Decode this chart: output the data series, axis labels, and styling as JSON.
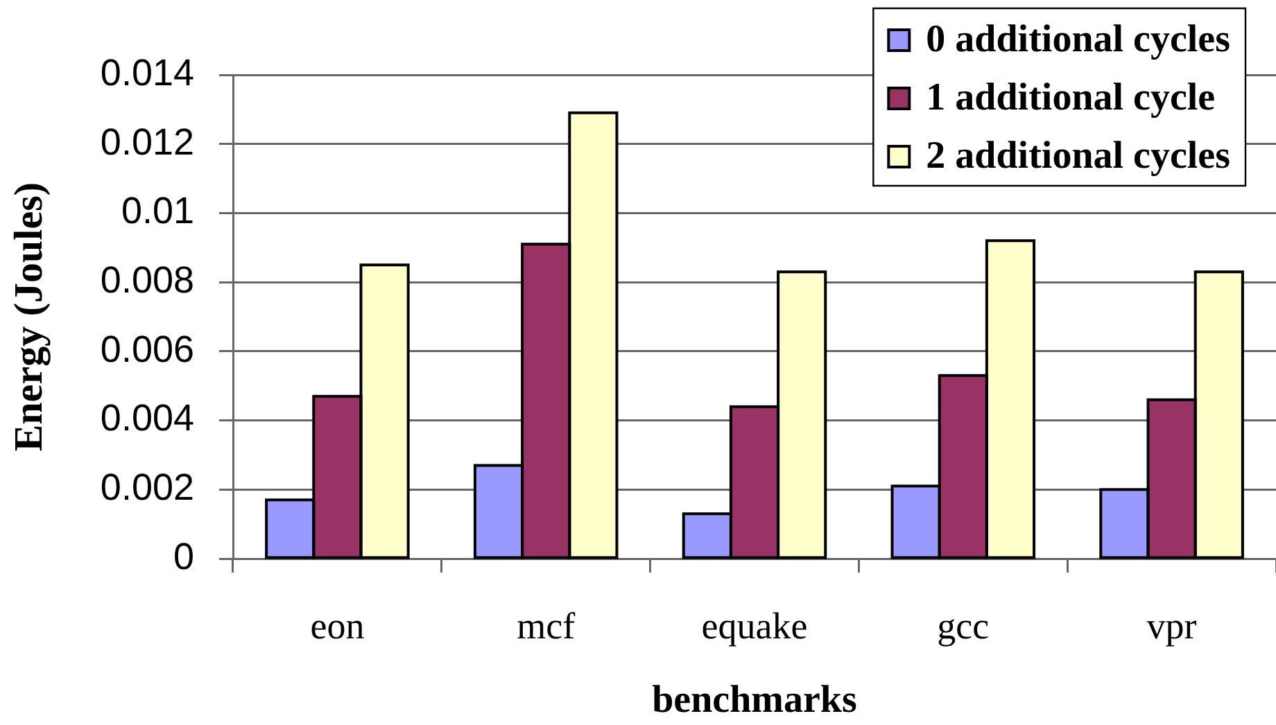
{
  "chart_data": {
    "type": "bar",
    "xlabel": "benchmarks",
    "ylabel": "Energy (Joules)",
    "categories": [
      "eon",
      "mcf",
      "equake",
      "gcc",
      "vpr"
    ],
    "series": [
      {
        "name": "0 additional cycles",
        "color": "#9999ff",
        "values": [
          0.0017,
          0.0027,
          0.0013,
          0.0021,
          0.002
        ]
      },
      {
        "name": "1 additional cycle",
        "color": "#993366",
        "values": [
          0.0047,
          0.0091,
          0.0044,
          0.0053,
          0.0046
        ]
      },
      {
        "name": "2 additional cycles",
        "color": "#ffffcc",
        "values": [
          0.0085,
          0.0129,
          0.0083,
          0.0092,
          0.0083
        ]
      }
    ],
    "ylim": [
      0,
      0.014
    ],
    "yticks": [
      0,
      0.002,
      0.004,
      0.006,
      0.008,
      0.01,
      0.012,
      0.014
    ],
    "grid": "y",
    "legend": "top right"
  }
}
